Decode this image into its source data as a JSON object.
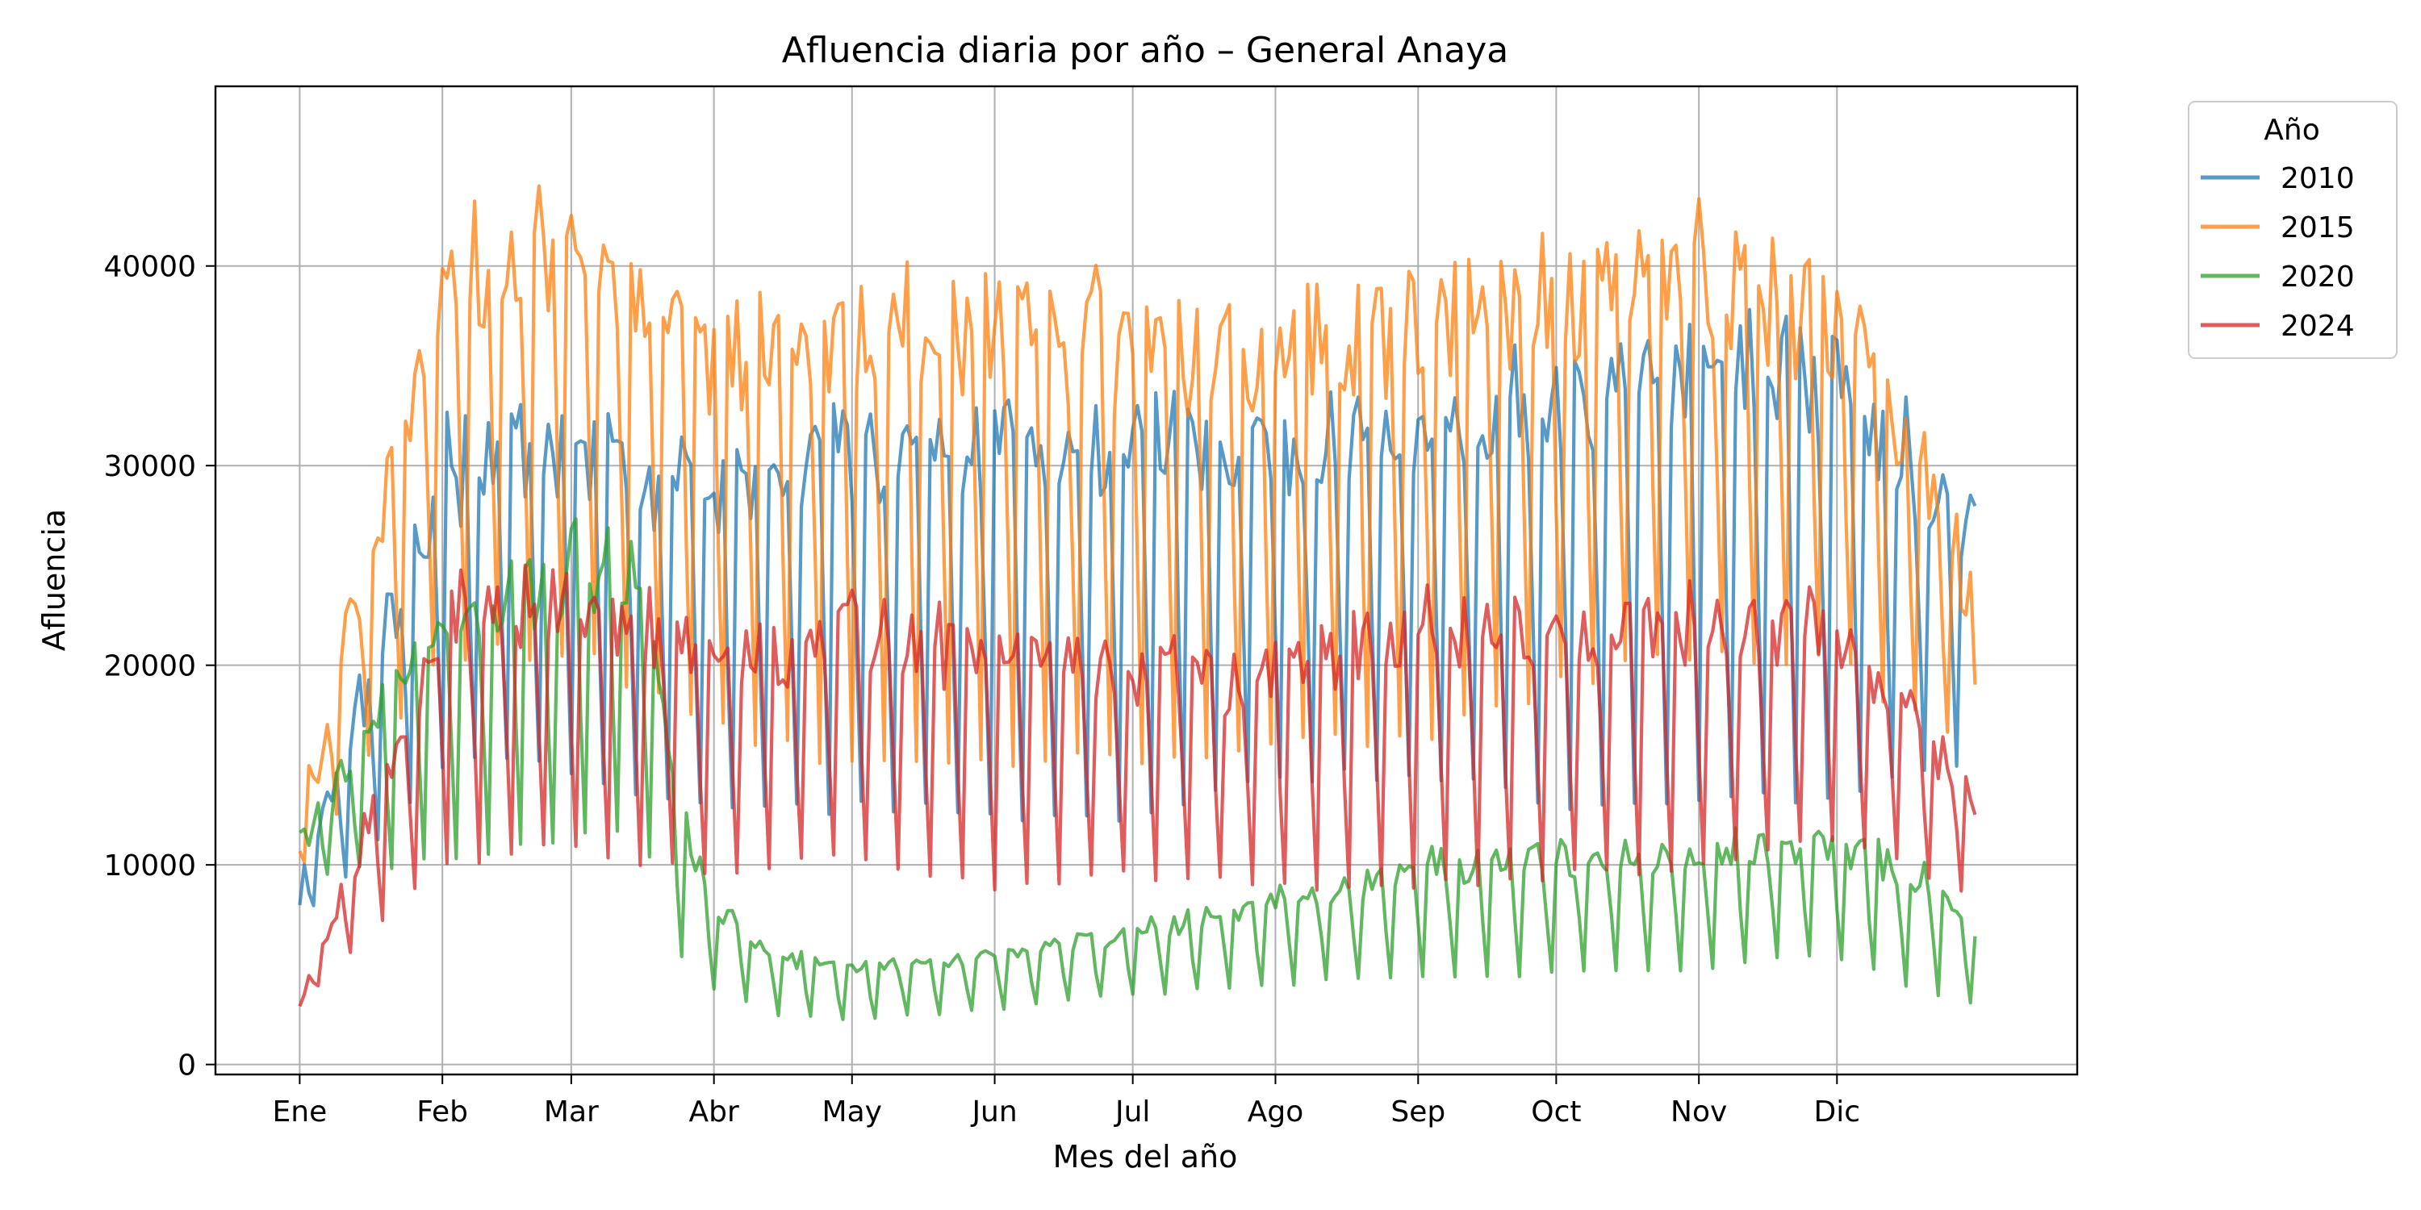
{
  "chart_data": {
    "type": "line",
    "title": "Afluencia diaria por año – General Anaya",
    "xlabel": "Mes del año",
    "ylabel": "Afluencia",
    "x_ticks": [
      {
        "day": 1,
        "label": "Ene"
      },
      {
        "day": 32,
        "label": "Feb"
      },
      {
        "day": 60,
        "label": "Mar"
      },
      {
        "day": 91,
        "label": "Abr"
      },
      {
        "day": 121,
        "label": "May"
      },
      {
        "day": 152,
        "label": "Jun"
      },
      {
        "day": 182,
        "label": "Jul"
      },
      {
        "day": 213,
        "label": "Ago"
      },
      {
        "day": 244,
        "label": "Sep"
      },
      {
        "day": 274,
        "label": "Oct"
      },
      {
        "day": 305,
        "label": "Nov"
      },
      {
        "day": 335,
        "label": "Dic"
      }
    ],
    "y_ticks": [
      0,
      10000,
      20000,
      30000,
      40000
    ],
    "xlim": [
      -17.3,
      387.2
    ],
    "ylim": [
      -500,
      49000
    ],
    "grid": true,
    "legend": {
      "title": "Año",
      "placement": "outside-top-right"
    },
    "series": [
      {
        "name": "2010",
        "color": "#1f77b4",
        "weekday_profile": [
          {
            "day": 1,
            "value": 9000
          },
          {
            "day": 32,
            "value": 30500
          },
          {
            "day": 60,
            "value": 31500
          },
          {
            "day": 91,
            "value": 29000
          },
          {
            "day": 121,
            "value": 31500
          },
          {
            "day": 152,
            "value": 31500
          },
          {
            "day": 182,
            "value": 31000
          },
          {
            "day": 213,
            "value": 31500
          },
          {
            "day": 244,
            "value": 32000
          },
          {
            "day": 274,
            "value": 33500
          },
          {
            "day": 305,
            "value": 36500
          },
          {
            "day": 335,
            "value": 34000
          },
          {
            "day": 365,
            "value": 27000
          }
        ],
        "weekend_profile": [
          {
            "day": 1,
            "value": 7000
          },
          {
            "day": 32,
            "value": 15000
          },
          {
            "day": 60,
            "value": 15000
          },
          {
            "day": 91,
            "value": 12500
          },
          {
            "day": 121,
            "value": 13000
          },
          {
            "day": 152,
            "value": 12500
          },
          {
            "day": 182,
            "value": 12500
          },
          {
            "day": 213,
            "value": 14500
          },
          {
            "day": 244,
            "value": 14500
          },
          {
            "day": 274,
            "value": 13000
          },
          {
            "day": 305,
            "value": 13000
          },
          {
            "day": 335,
            "value": 13500
          },
          {
            "day": 365,
            "value": 15000
          }
        ]
      },
      {
        "name": "2015",
        "color": "#ff7f0e",
        "weekday_profile": [
          {
            "day": 1,
            "value": 12000
          },
          {
            "day": 32,
            "value": 40000
          },
          {
            "day": 60,
            "value": 41500
          },
          {
            "day": 91,
            "value": 36000
          },
          {
            "day": 121,
            "value": 37000
          },
          {
            "day": 152,
            "value": 38000
          },
          {
            "day": 182,
            "value": 36500
          },
          {
            "day": 213,
            "value": 36500
          },
          {
            "day": 244,
            "value": 38000
          },
          {
            "day": 274,
            "value": 39500
          },
          {
            "day": 305,
            "value": 40500
          },
          {
            "day": 335,
            "value": 37500
          },
          {
            "day": 365,
            "value": 24000
          }
        ],
        "weekend_profile": [
          {
            "day": 1,
            "value": 10000
          },
          {
            "day": 32,
            "value": 20500
          },
          {
            "day": 60,
            "value": 21000
          },
          {
            "day": 91,
            "value": 17000
          },
          {
            "day": 121,
            "value": 15000
          },
          {
            "day": 152,
            "value": 15000
          },
          {
            "day": 182,
            "value": 15500
          },
          {
            "day": 213,
            "value": 16000
          },
          {
            "day": 244,
            "value": 16500
          },
          {
            "day": 274,
            "value": 19000
          },
          {
            "day": 305,
            "value": 21000
          },
          {
            "day": 335,
            "value": 20000
          },
          {
            "day": 365,
            "value": 15500
          }
        ]
      },
      {
        "name": "2020",
        "color": "#2ca02c",
        "weekday_profile": [
          {
            "day": 1,
            "value": 11000
          },
          {
            "day": 32,
            "value": 22500
          },
          {
            "day": 60,
            "value": 25000
          },
          {
            "day": 75,
            "value": 26000
          },
          {
            "day": 82,
            "value": 14000
          },
          {
            "day": 91,
            "value": 8000
          },
          {
            "day": 105,
            "value": 5500
          },
          {
            "day": 121,
            "value": 4800
          },
          {
            "day": 152,
            "value": 5300
          },
          {
            "day": 182,
            "value": 6800
          },
          {
            "day": 213,
            "value": 8200
          },
          {
            "day": 244,
            "value": 10000
          },
          {
            "day": 274,
            "value": 10500
          },
          {
            "day": 305,
            "value": 10800
          },
          {
            "day": 335,
            "value": 11000
          },
          {
            "day": 355,
            "value": 9500
          },
          {
            "day": 365,
            "value": 7000
          }
        ],
        "weekend_profile": [
          {
            "day": 1,
            "value": 9000
          },
          {
            "day": 32,
            "value": 10500
          },
          {
            "day": 60,
            "value": 11500
          },
          {
            "day": 75,
            "value": 12000
          },
          {
            "day": 82,
            "value": 6000
          },
          {
            "day": 91,
            "value": 3800
          },
          {
            "day": 105,
            "value": 2500
          },
          {
            "day": 121,
            "value": 2200
          },
          {
            "day": 152,
            "value": 2800
          },
          {
            "day": 182,
            "value": 3500
          },
          {
            "day": 213,
            "value": 4000
          },
          {
            "day": 244,
            "value": 4500
          },
          {
            "day": 274,
            "value": 4500
          },
          {
            "day": 305,
            "value": 4800
          },
          {
            "day": 335,
            "value": 5500
          },
          {
            "day": 355,
            "value": 3500
          },
          {
            "day": 365,
            "value": 3000
          }
        ]
      },
      {
        "name": "2024",
        "color": "#d62728",
        "weekday_profile": [
          {
            "day": 1,
            "value": 3000
          },
          {
            "day": 32,
            "value": 22500
          },
          {
            "day": 60,
            "value": 23500
          },
          {
            "day": 91,
            "value": 20500
          },
          {
            "day": 121,
            "value": 22000
          },
          {
            "day": 152,
            "value": 21000
          },
          {
            "day": 182,
            "value": 20000
          },
          {
            "day": 213,
            "value": 19500
          },
          {
            "day": 244,
            "value": 22500
          },
          {
            "day": 274,
            "value": 21500
          },
          {
            "day": 305,
            "value": 22500
          },
          {
            "day": 335,
            "value": 22000
          },
          {
            "day": 365,
            "value": 13500
          }
        ],
        "weekend_profile": [
          {
            "day": 1,
            "value": 3000
          },
          {
            "day": 32,
            "value": 10000
          },
          {
            "day": 60,
            "value": 11000
          },
          {
            "day": 91,
            "value": 9500
          },
          {
            "day": 121,
            "value": 10500
          },
          {
            "day": 152,
            "value": 9000
          },
          {
            "day": 182,
            "value": 9500
          },
          {
            "day": 213,
            "value": 9000
          },
          {
            "day": 244,
            "value": 9000
          },
          {
            "day": 274,
            "value": 9500
          },
          {
            "day": 305,
            "value": 10000
          },
          {
            "day": 335,
            "value": 11500
          },
          {
            "day": 365,
            "value": 8500
          }
        ]
      }
    ]
  }
}
